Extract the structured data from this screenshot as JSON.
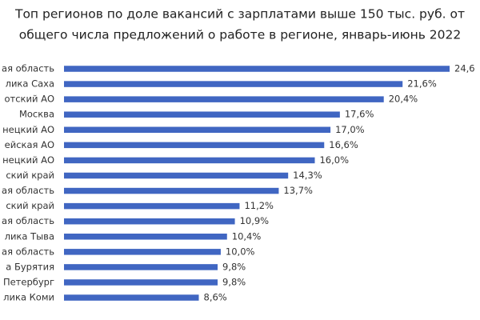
{
  "chart_data": {
    "type": "hbar",
    "title": [
      "Топ регионов по доле вакансий с зарплатами выше 150 тыс. руб. от",
      "общего числа предложений о работе в регионе, январь-июнь 2022"
    ],
    "color": "#4066c2",
    "categories": [
      "ая область",
      "лика Саха",
      "отский АО",
      "Москва",
      "нецкий АО",
      "ейская АО",
      "нецкий АО",
      "ский край",
      "ая область",
      "ский край",
      "ая область",
      "лика Тыва",
      "ая область",
      "а Бурятия",
      "Петербург",
      "лика Коми"
    ],
    "values": [
      24.6,
      21.6,
      20.4,
      17.6,
      17.0,
      16.6,
      16.0,
      14.3,
      13.7,
      11.2,
      10.9,
      10.4,
      10.0,
      9.8,
      9.8,
      8.6
    ],
    "value_labels": [
      "24,6",
      "21,6%",
      "20,4%",
      "17,6%",
      "17,0%",
      "16,6%",
      "16,0%",
      "14,3%",
      "13,7%",
      "11,2%",
      "10,9%",
      "10,4%",
      "10,0%",
      "9,8%",
      "9,8%",
      "8,6%"
    ]
  }
}
